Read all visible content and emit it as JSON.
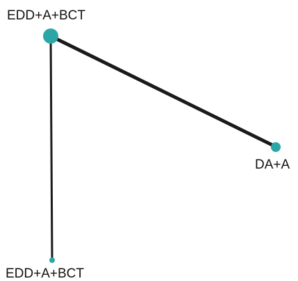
{
  "network": {
    "colors": {
      "node": "#2aa6a6",
      "edge": "#1a1a1a",
      "label": "#111111"
    },
    "nodes": [
      {
        "id": "n1",
        "label": "EDD+A+BCT"
      },
      {
        "id": "n2",
        "label": "DA+A"
      },
      {
        "id": "n3",
        "label": "EDD+A+BCT"
      }
    ],
    "edges": [
      {
        "from": "n1",
        "to": "n2"
      },
      {
        "from": "n1",
        "to": "n3"
      }
    ]
  }
}
